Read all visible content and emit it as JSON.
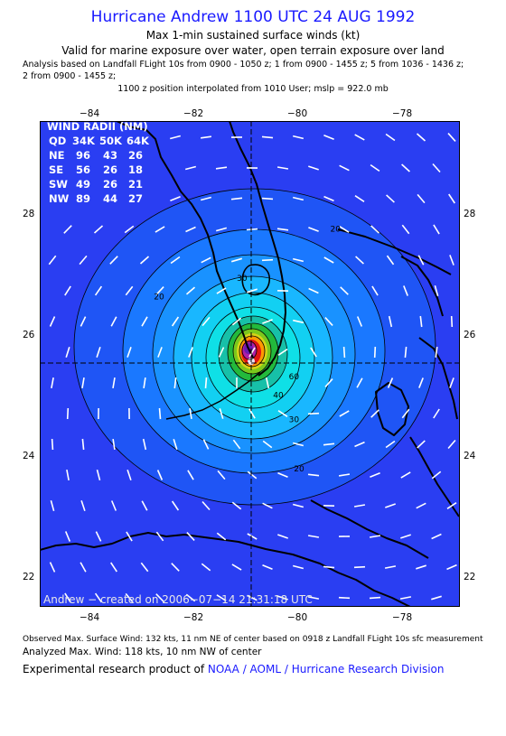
{
  "header": {
    "title": "Hurricane Andrew 1100 UTC 24 AUG 1992",
    "subtitle": "Max 1-min sustained surface winds (kt)",
    "validity": "Valid for marine exposure over water, open terrain exposure over land",
    "basis_line1": "Analysis based on  Landfall FLight 10s from 0900 - 1050 z;  1 from 0900 - 1455 z;  5 from 1036 - 1436 z;",
    "basis_line2": "2 from 0900 - 1455 z;",
    "position_line": "1100 z position interpolated from 1010 User; mslp = 922.0 mb"
  },
  "axes": {
    "lon_ticks": [
      "−84",
      "−82",
      "−80",
      "−78"
    ],
    "lon_values": [
      -84,
      -82,
      -80,
      -78
    ],
    "lat_ticks": [
      "28",
      "26",
      "24",
      "22"
    ],
    "lat_values": [
      28,
      26,
      24,
      22
    ],
    "lon_range": [
      -85.0,
      -76.9
    ],
    "lat_range": [
      21.6,
      29.5
    ]
  },
  "center": {
    "lon": -80.0,
    "lat": 25.5
  },
  "wind_radii": {
    "title": "WIND RADII (NM)",
    "header": [
      "QD",
      "34K",
      "50K",
      "64K"
    ],
    "rows": [
      [
        "NE",
        "96",
        "43",
        "26"
      ],
      [
        "SE",
        "56",
        "26",
        "18"
      ],
      [
        "SW",
        "49",
        "26",
        "21"
      ],
      [
        "NW",
        "89",
        "44",
        "27"
      ]
    ]
  },
  "contour_labels": [
    {
      "text": "20",
      "lon": -79.4,
      "lat": 27.7
    },
    {
      "text": "30",
      "lon": -81.2,
      "lat": 26.9
    },
    {
      "text": "20",
      "lon": -82.8,
      "lat": 26.6
    },
    {
      "text": "30",
      "lon": -80.2,
      "lat": 24.6
    },
    {
      "text": "20",
      "lon": -80.1,
      "lat": 23.8
    },
    {
      "text": "40",
      "lon": -80.5,
      "lat": 25.0
    },
    {
      "text": "60",
      "lon": -80.2,
      "lat": 25.3
    }
  ],
  "colors": {
    "outer_blue": "#2a3ef2",
    "mid_blue": "#1a78ff",
    "sky": "#19b7ff",
    "cyan": "#0fe0e6",
    "teal": "#17c0a8",
    "green": "#23b93c",
    "yellow_green": "#a6d418",
    "orange": "#ff7a00",
    "red": "#e01414",
    "magenta": "#b01ea5",
    "purple": "#6a1ab0",
    "land": "#000000"
  },
  "credit": "Andrew − created on 2006−07−14 21:31:18 UTC",
  "footer": {
    "observed": "Observed Max. Surface Wind: 132 kts, 11 nm NE of center based on 0918 z Landfall FLight 10s sfc measurement",
    "analyzed": "Analyzed Max. Wind: 118 kts, 10 nm NW of center",
    "product_prefix": "Experimental research product of ",
    "product_org": "NOAA / AOML / Hurricane Research Division"
  }
}
